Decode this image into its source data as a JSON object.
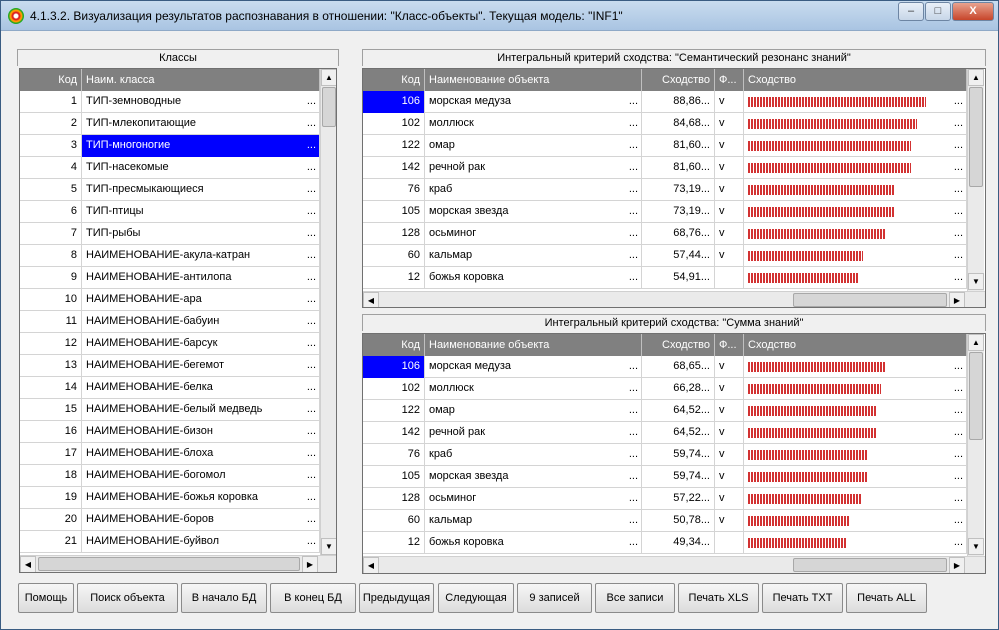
{
  "window": {
    "title": "4.1.3.2. Визуализация результатов распознавания в отношении: \"Класс-объекты\". Текущая модель: \"INF1\"",
    "min": "–",
    "max": "□",
    "close": "X"
  },
  "classes": {
    "title": "Классы",
    "headers": [
      "Код",
      "Наим. класса"
    ],
    "selected_index": 2,
    "rows": [
      {
        "code": "1",
        "name": "ТИП-земноводные"
      },
      {
        "code": "2",
        "name": "ТИП-млекопитающие"
      },
      {
        "code": "3",
        "name": "ТИП-многоногие"
      },
      {
        "code": "4",
        "name": "ТИП-насекомые"
      },
      {
        "code": "5",
        "name": "ТИП-пресмыкающиеся"
      },
      {
        "code": "6",
        "name": "ТИП-птицы"
      },
      {
        "code": "7",
        "name": "ТИП-рыбы"
      },
      {
        "code": "8",
        "name": "НАИМЕНОВАНИЕ-акула-катран"
      },
      {
        "code": "9",
        "name": "НАИМЕНОВАНИЕ-антилопа"
      },
      {
        "code": "10",
        "name": "НАИМЕНОВАНИЕ-ара"
      },
      {
        "code": "11",
        "name": "НАИМЕНОВАНИЕ-бабуин"
      },
      {
        "code": "12",
        "name": "НАИМЕНОВАНИЕ-барсук"
      },
      {
        "code": "13",
        "name": "НАИМЕНОВАНИЕ-бегемот"
      },
      {
        "code": "14",
        "name": "НАИМЕНОВАНИЕ-белка"
      },
      {
        "code": "15",
        "name": "НАИМЕНОВАНИЕ-белый медведь"
      },
      {
        "code": "16",
        "name": "НАИМЕНОВАНИЕ-бизон"
      },
      {
        "code": "17",
        "name": "НАИМЕНОВАНИЕ-блоха"
      },
      {
        "code": "18",
        "name": "НАИМЕНОВАНИЕ-богомол"
      },
      {
        "code": "19",
        "name": "НАИМЕНОВАНИЕ-божья коровка"
      },
      {
        "code": "20",
        "name": "НАИМЕНОВАНИЕ-боров"
      },
      {
        "code": "21",
        "name": "НАИМЕНОВАНИЕ-буйвол"
      }
    ]
  },
  "semantic": {
    "title": "Интегральный критерий сходства: \"Семантический резонанс знаний\"",
    "headers": [
      "Код",
      "Наименование объекта",
      "Сходство",
      "Ф...",
      "Сходство"
    ],
    "rows": [
      {
        "code": "106",
        "name": "морская медуза",
        "sim": "88,86...",
        "f": "v",
        "level": 0.8886
      },
      {
        "code": "102",
        "name": "моллюск",
        "sim": "84,68...",
        "f": "v",
        "level": 0.8468
      },
      {
        "code": "122",
        "name": "омар",
        "sim": "81,60...",
        "f": "v",
        "level": 0.816
      },
      {
        "code": "142",
        "name": "речной рак",
        "sim": "81,60...",
        "f": "v",
        "level": 0.816
      },
      {
        "code": "76",
        "name": "краб",
        "sim": "73,19...",
        "f": "v",
        "level": 0.7319
      },
      {
        "code": "105",
        "name": "морская звезда",
        "sim": "73,19...",
        "f": "v",
        "level": 0.7319
      },
      {
        "code": "128",
        "name": "осьминог",
        "sim": "68,76...",
        "f": "v",
        "level": 0.6876
      },
      {
        "code": "60",
        "name": "кальмар",
        "sim": "57,44...",
        "f": "v",
        "level": 0.5744
      },
      {
        "code": "12",
        "name": "божья коровка",
        "sim": "54,91...",
        "f": "",
        "level": 0.5491
      }
    ]
  },
  "sum": {
    "title": "Интегральный критерий сходства: \"Сумма знаний\"",
    "headers": [
      "Код",
      "Наименование объекта",
      "Сходство",
      "Ф...",
      "Сходство"
    ],
    "rows": [
      {
        "code": "106",
        "name": "морская медуза",
        "sim": "68,65...",
        "f": "v",
        "level": 0.6865
      },
      {
        "code": "102",
        "name": "моллюск",
        "sim": "66,28...",
        "f": "v",
        "level": 0.6628
      },
      {
        "code": "122",
        "name": "омар",
        "sim": "64,52...",
        "f": "v",
        "level": 0.6452
      },
      {
        "code": "142",
        "name": "речной рак",
        "sim": "64,52...",
        "f": "v",
        "level": 0.6452
      },
      {
        "code": "76",
        "name": "краб",
        "sim": "59,74...",
        "f": "v",
        "level": 0.5974
      },
      {
        "code": "105",
        "name": "морская звезда",
        "sim": "59,74...",
        "f": "v",
        "level": 0.5974
      },
      {
        "code": "128",
        "name": "осьминог",
        "sim": "57,22...",
        "f": "v",
        "level": 0.5722
      },
      {
        "code": "60",
        "name": "кальмар",
        "sim": "50,78...",
        "f": "v",
        "level": 0.5078
      },
      {
        "code": "12",
        "name": "божья коровка",
        "sim": "49,34...",
        "f": "",
        "level": 0.4934
      }
    ]
  },
  "ellipsis": "...",
  "buttons": [
    "Помощь",
    "Поиск объекта",
    "В начало БД",
    "В конец БД",
    "Предыдущая",
    "Следующая",
    "9 записей",
    "Все записи",
    "Печать XLS",
    "Печать TXT",
    "Печать ALL"
  ],
  "colors": {
    "selection": "#0000ff",
    "bar": "#d23232",
    "header": "#808080"
  }
}
